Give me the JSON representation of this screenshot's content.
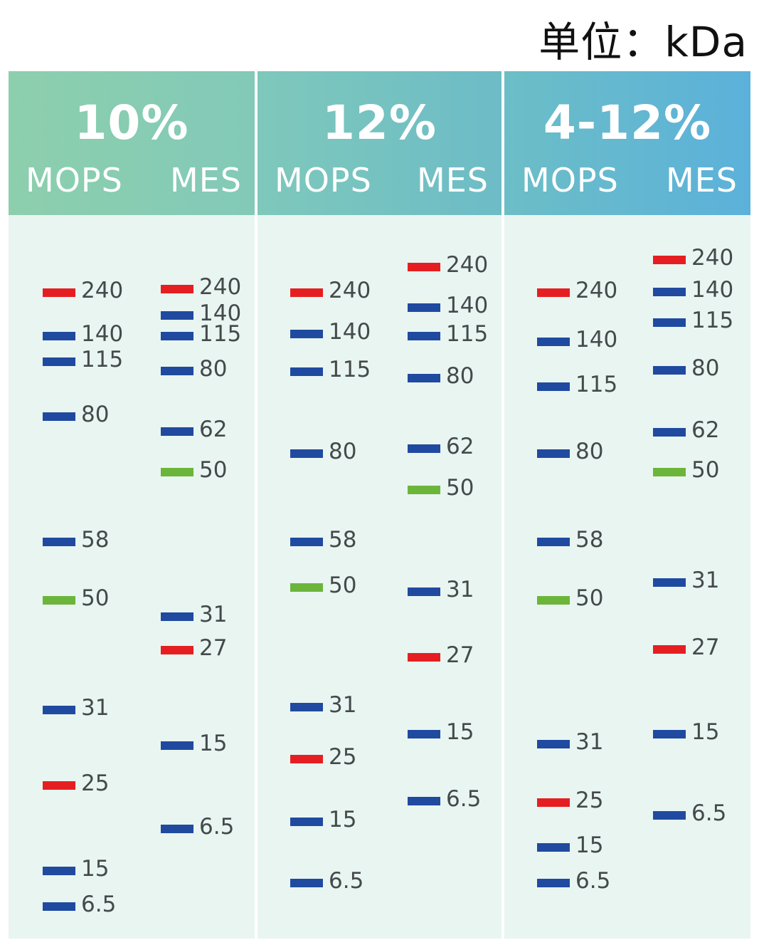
{
  "unit_label": "单位：kDa",
  "colors": {
    "blue": "#1f4aa0",
    "red": "#e51f21",
    "green": "#6cb53b"
  },
  "panels": [
    {
      "gel": "10%",
      "lanes": [
        {
          "buffer": "MOPS",
          "markers": [
            {
              "label": "240",
              "color": "red"
            },
            {
              "label": "140",
              "color": "blue"
            },
            {
              "label": "115",
              "color": "blue"
            },
            {
              "label": "80",
              "color": "blue"
            },
            {
              "label": "58",
              "color": "blue"
            },
            {
              "label": "50",
              "color": "green"
            },
            {
              "label": "31",
              "color": "blue"
            },
            {
              "label": "25",
              "color": "red"
            },
            {
              "label": "15",
              "color": "blue"
            },
            {
              "label": "6.5",
              "color": "blue"
            }
          ]
        },
        {
          "buffer": "MES",
          "markers": [
            {
              "label": "240",
              "color": "red"
            },
            {
              "label": "140",
              "color": "blue"
            },
            {
              "label": "115",
              "color": "blue"
            },
            {
              "label": "80",
              "color": "blue"
            },
            {
              "label": "62",
              "color": "blue"
            },
            {
              "label": "50",
              "color": "green"
            },
            {
              "label": "31",
              "color": "blue"
            },
            {
              "label": "27",
              "color": "red"
            },
            {
              "label": "15",
              "color": "blue"
            },
            {
              "label": "6.5",
              "color": "blue"
            }
          ]
        }
      ]
    },
    {
      "gel": "12%",
      "lanes": [
        {
          "buffer": "MOPS",
          "markers": [
            {
              "label": "240",
              "color": "red"
            },
            {
              "label": "140",
              "color": "blue"
            },
            {
              "label": "115",
              "color": "blue"
            },
            {
              "label": "80",
              "color": "blue"
            },
            {
              "label": "58",
              "color": "blue"
            },
            {
              "label": "50",
              "color": "green"
            },
            {
              "label": "31",
              "color": "blue"
            },
            {
              "label": "25",
              "color": "red"
            },
            {
              "label": "15",
              "color": "blue"
            },
            {
              "label": "6.5",
              "color": "blue"
            }
          ]
        },
        {
          "buffer": "MES",
          "markers": [
            {
              "label": "240",
              "color": "red"
            },
            {
              "label": "140",
              "color": "blue"
            },
            {
              "label": "115",
              "color": "blue"
            },
            {
              "label": "80",
              "color": "blue"
            },
            {
              "label": "62",
              "color": "blue"
            },
            {
              "label": "50",
              "color": "green"
            },
            {
              "label": "31",
              "color": "blue"
            },
            {
              "label": "27",
              "color": "red"
            },
            {
              "label": "15",
              "color": "blue"
            },
            {
              "label": "6.5",
              "color": "blue"
            }
          ]
        }
      ]
    },
    {
      "gel": "4-12%",
      "lanes": [
        {
          "buffer": "MOPS",
          "markers": [
            {
              "label": "240",
              "color": "red"
            },
            {
              "label": "140",
              "color": "blue"
            },
            {
              "label": "115",
              "color": "blue"
            },
            {
              "label": "80",
              "color": "blue"
            },
            {
              "label": "58",
              "color": "blue"
            },
            {
              "label": "50",
              "color": "green"
            },
            {
              "label": "31",
              "color": "blue"
            },
            {
              "label": "25",
              "color": "red"
            },
            {
              "label": "15",
              "color": "blue"
            },
            {
              "label": "6.5",
              "color": "blue"
            }
          ]
        },
        {
          "buffer": "MES",
          "markers": [
            {
              "label": "240",
              "color": "red"
            },
            {
              "label": "140",
              "color": "blue"
            },
            {
              "label": "115",
              "color": "blue"
            },
            {
              "label": "80",
              "color": "blue"
            },
            {
              "label": "62",
              "color": "blue"
            },
            {
              "label": "50",
              "color": "green"
            },
            {
              "label": "31",
              "color": "blue"
            },
            {
              "label": "27",
              "color": "red"
            },
            {
              "label": "15",
              "color": "blue"
            },
            {
              "label": "6.5",
              "color": "blue"
            }
          ]
        }
      ]
    }
  ]
}
